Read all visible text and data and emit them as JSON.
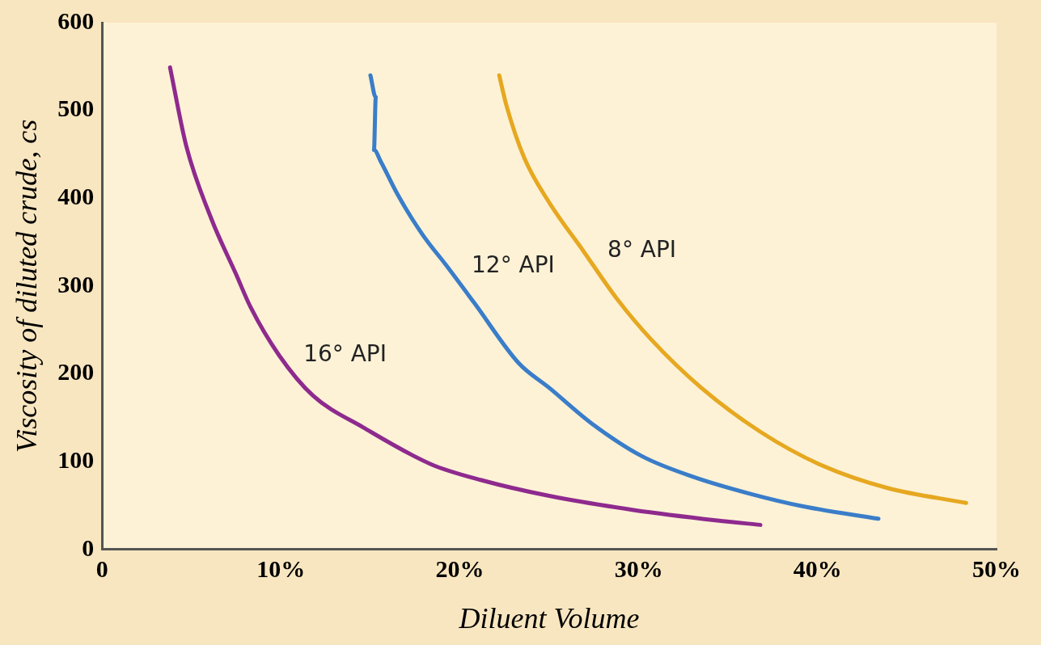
{
  "chart_data": {
    "type": "line",
    "xlabel": "Diluent Volume",
    "ylabel": "Viscosity of diluted crude, cs",
    "xlim": [
      0,
      50
    ],
    "ylim": [
      0,
      600
    ],
    "xticks": [
      0,
      {
        "value": 10,
        "label": "10%"
      },
      {
        "value": 20,
        "label": "20%"
      },
      {
        "value": 30,
        "label": "30%"
      },
      {
        "value": 40,
        "label": "40%"
      },
      {
        "value": 50,
        "label": "50%"
      }
    ],
    "yticks": [
      0,
      100,
      200,
      300,
      400,
      500,
      600
    ],
    "grid": false,
    "legend": false,
    "marker": "none",
    "line_style": "solid",
    "series": [
      {
        "name": "16° API",
        "color": "#8e2a8e",
        "x": [
          3.8,
          4.7,
          6.1,
          7.5,
          8.3,
          9.9,
          11.8,
          14.6,
          18.4,
          21.2,
          25,
          29.7,
          34.4,
          36.8
        ],
        "values": [
          549,
          460,
          377,
          313,
          276,
          221,
          175,
          139,
          97,
          79,
          61,
          45,
          33,
          28
        ]
      },
      {
        "name": "12° API",
        "color": "#3a7dc9",
        "x": [
          15,
          15.3,
          15.2,
          15.6,
          16.5,
          17.9,
          19.3,
          20.8,
          23.3,
          25,
          27.4,
          30.2,
          33,
          36.3,
          39.2,
          43.4
        ],
        "values": [
          540,
          515,
          455,
          441,
          405,
          359,
          322,
          281,
          212,
          184,
          143,
          106,
          83,
          63,
          49,
          35
        ]
      },
      {
        "name": "8° API",
        "color": "#e6a820",
        "x": [
          22.2,
          22.6,
          23.6,
          25,
          26.9,
          28.8,
          30.7,
          33.5,
          36.8,
          40.1,
          43.9,
          48.3
        ],
        "values": [
          540,
          506,
          446,
          395,
          340,
          285,
          239,
          184,
          134,
          97,
          70,
          53
        ]
      }
    ]
  }
}
